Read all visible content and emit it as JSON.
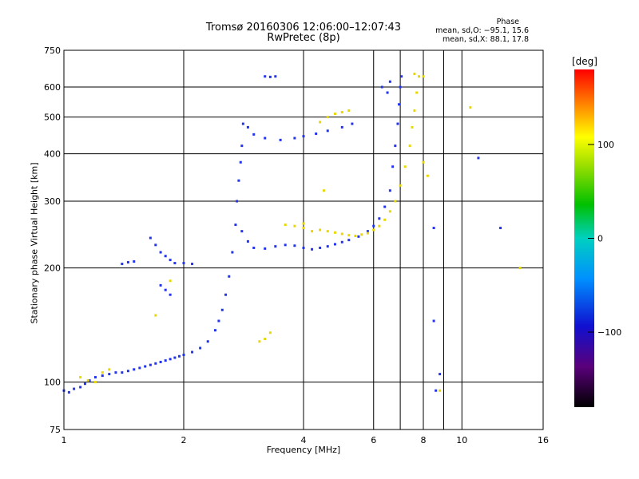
{
  "chart_data": {
    "type": "scatter",
    "title": "Tromsø 20160306 12:06:00–12:07:43",
    "subtitle": "RwPretec (8p)",
    "xlabel": "Frequency [MHz]",
    "ylabel": "Stationary phase Virtual Height [km]",
    "x_scale": "log",
    "y_scale": "log",
    "xlim": [
      1,
      16
    ],
    "ylim": [
      75,
      750
    ],
    "x_ticks": [
      "1",
      "2",
      "4",
      "6",
      "8",
      "10",
      "16"
    ],
    "y_ticks": [
      "75",
      "100",
      "200",
      "300",
      "400",
      "500",
      "600",
      "750"
    ],
    "grid": true,
    "phase_stats": {
      "title": "Phase",
      "o_line": "mean, sd,O: −95.1, 15.6",
      "x_line": "mean, sd,X:  88.1, 17.8"
    },
    "colorbar": {
      "label": "[deg]",
      "ticks": [
        "100",
        "0",
        "−100"
      ],
      "tick_values": [
        100,
        0,
        -100
      ],
      "range": [
        -180,
        180
      ]
    },
    "series": [
      {
        "mode": "O",
        "phase_deg": -95,
        "color": "#2233ee",
        "points": [
          [
            1.0,
            95
          ],
          [
            1.03,
            94
          ],
          [
            1.06,
            96
          ],
          [
            1.1,
            97
          ],
          [
            1.13,
            99
          ],
          [
            1.16,
            101
          ],
          [
            1.2,
            103
          ],
          [
            1.25,
            104
          ],
          [
            1.3,
            105
          ],
          [
            1.35,
            106
          ],
          [
            1.4,
            106
          ],
          [
            1.45,
            107
          ],
          [
            1.5,
            108
          ],
          [
            1.55,
            109
          ],
          [
            1.6,
            110
          ],
          [
            1.65,
            111
          ],
          [
            1.7,
            112
          ],
          [
            1.75,
            113
          ],
          [
            1.8,
            114
          ],
          [
            1.85,
            115
          ],
          [
            1.9,
            116
          ],
          [
            1.95,
            117
          ],
          [
            2.0,
            118
          ],
          [
            2.1,
            120
          ],
          [
            2.2,
            123
          ],
          [
            2.3,
            128
          ],
          [
            2.4,
            137
          ],
          [
            2.45,
            145
          ],
          [
            2.5,
            155
          ],
          [
            2.55,
            170
          ],
          [
            2.6,
            190
          ],
          [
            2.65,
            220
          ],
          [
            2.7,
            260
          ],
          [
            2.72,
            300
          ],
          [
            2.75,
            340
          ],
          [
            2.78,
            380
          ],
          [
            2.8,
            420
          ],
          [
            2.82,
            480
          ],
          [
            2.9,
            470
          ],
          [
            3.0,
            450
          ],
          [
            3.2,
            440
          ],
          [
            3.5,
            435
          ],
          [
            3.8,
            440
          ],
          [
            4.0,
            445
          ],
          [
            4.3,
            452
          ],
          [
            4.6,
            460
          ],
          [
            5.0,
            470
          ],
          [
            5.3,
            480
          ],
          [
            2.8,
            250
          ],
          [
            2.9,
            235
          ],
          [
            3.0,
            226
          ],
          [
            3.2,
            225
          ],
          [
            3.4,
            228
          ],
          [
            3.6,
            230
          ],
          [
            3.8,
            229
          ],
          [
            4.0,
            226
          ],
          [
            4.2,
            224
          ],
          [
            4.4,
            226
          ],
          [
            4.6,
            228
          ],
          [
            4.8,
            231
          ],
          [
            5.0,
            234
          ],
          [
            5.2,
            237
          ],
          [
            5.5,
            242
          ],
          [
            5.8,
            250
          ],
          [
            6.0,
            258
          ],
          [
            6.2,
            270
          ],
          [
            6.4,
            290
          ],
          [
            6.6,
            320
          ],
          [
            6.7,
            370
          ],
          [
            6.8,
            420
          ],
          [
            6.9,
            480
          ],
          [
            6.95,
            540
          ],
          [
            7.0,
            600
          ],
          [
            7.05,
            640
          ],
          [
            6.6,
            620
          ],
          [
            6.3,
            600
          ],
          [
            6.5,
            580
          ],
          [
            1.65,
            240
          ],
          [
            1.7,
            230
          ],
          [
            1.75,
            220
          ],
          [
            1.8,
            215
          ],
          [
            1.85,
            210
          ],
          [
            1.9,
            206
          ],
          [
            2.0,
            206
          ],
          [
            2.1,
            205
          ],
          [
            1.75,
            180
          ],
          [
            1.8,
            175
          ],
          [
            1.85,
            170
          ],
          [
            1.4,
            205
          ],
          [
            1.45,
            207
          ],
          [
            1.5,
            208
          ],
          [
            3.2,
            640
          ],
          [
            3.3,
            638
          ],
          [
            3.4,
            640
          ],
          [
            8.5,
            255
          ],
          [
            8.5,
            145
          ],
          [
            8.8,
            105
          ],
          [
            8.6,
            95
          ],
          [
            12.5,
            255
          ],
          [
            11.0,
            390
          ]
        ]
      },
      {
        "mode": "X",
        "phase_deg": 88,
        "color": "#e8d800",
        "points": [
          [
            4.0,
            255
          ],
          [
            4.2,
            250
          ],
          [
            4.4,
            252
          ],
          [
            4.6,
            250
          ],
          [
            4.8,
            248
          ],
          [
            5.0,
            246
          ],
          [
            5.2,
            244
          ],
          [
            5.4,
            243
          ],
          [
            5.6,
            245
          ],
          [
            5.8,
            247
          ],
          [
            6.0,
            252
          ],
          [
            6.2,
            258
          ],
          [
            6.4,
            268
          ],
          [
            6.6,
            282
          ],
          [
            6.8,
            300
          ],
          [
            7.0,
            330
          ],
          [
            7.2,
            370
          ],
          [
            7.4,
            420
          ],
          [
            7.5,
            470
          ],
          [
            7.6,
            520
          ],
          [
            7.7,
            580
          ],
          [
            7.8,
            640
          ],
          [
            3.6,
            260
          ],
          [
            3.8,
            258
          ],
          [
            4.0,
            262
          ],
          [
            4.4,
            485
          ],
          [
            4.6,
            500
          ],
          [
            4.8,
            510
          ],
          [
            5.0,
            515
          ],
          [
            5.2,
            520
          ],
          [
            3.2,
            130
          ],
          [
            3.3,
            135
          ],
          [
            3.1,
            128
          ],
          [
            1.1,
            103
          ],
          [
            1.15,
            101
          ],
          [
            1.2,
            100
          ],
          [
            1.25,
            106
          ],
          [
            1.3,
            108
          ],
          [
            8.0,
            380
          ],
          [
            8.2,
            350
          ],
          [
            8.0,
            640
          ],
          [
            7.6,
            650
          ],
          [
            8.8,
            95
          ],
          [
            10.5,
            530
          ],
          [
            14.0,
            200
          ],
          [
            4.5,
            320
          ],
          [
            1.7,
            150
          ],
          [
            1.85,
            185
          ]
        ]
      }
    ]
  }
}
